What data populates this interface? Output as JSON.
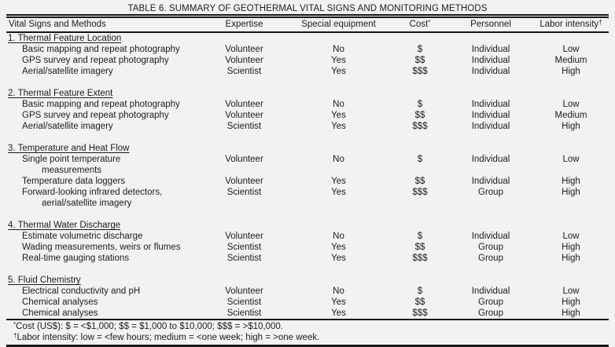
{
  "page": {
    "background_color": "#f2f2f0",
    "text_color": "#1c1c1c",
    "rule_color": "#171717"
  },
  "table": {
    "title": "TABLE 6. SUMMARY OF GEOTHERMAL VITAL SIGNS AND MONITORING METHODS",
    "columns": [
      {
        "label": "Vital Signs and Methods",
        "sup": ""
      },
      {
        "label": "Expertise",
        "sup": ""
      },
      {
        "label": "Special equipment",
        "sup": ""
      },
      {
        "label": "Cost",
        "sup": "*"
      },
      {
        "label": "Personnel",
        "sup": ""
      },
      {
        "label": "Labor intensity",
        "sup": "†"
      }
    ],
    "sections": [
      {
        "heading": "1. Thermal Feature Location",
        "rows": [
          {
            "method": [
              "Basic mapping and repeat photography"
            ],
            "expertise": "Volunteer",
            "special_equipment": "No",
            "cost": "$",
            "personnel": "Individual",
            "labor_intensity": "Low"
          },
          {
            "method": [
              "GPS survey and repeat photography"
            ],
            "expertise": "Volunteer",
            "special_equipment": "Yes",
            "cost": "$$",
            "personnel": "Individual",
            "labor_intensity": "Medium"
          },
          {
            "method": [
              "Aerial/satellite imagery"
            ],
            "expertise": "Scientist",
            "special_equipment": "Yes",
            "cost": "$$$",
            "personnel": "Individual",
            "labor_intensity": "High"
          }
        ]
      },
      {
        "heading": "2. Thermal Feature Extent",
        "rows": [
          {
            "method": [
              "Basic mapping and repeat photography"
            ],
            "expertise": "Volunteer",
            "special_equipment": "No",
            "cost": "$",
            "personnel": "Individual",
            "labor_intensity": "Low"
          },
          {
            "method": [
              "GPS survey and repeat photography"
            ],
            "expertise": "Volunteer",
            "special_equipment": "Yes",
            "cost": "$$",
            "personnel": "Individual",
            "labor_intensity": "Medium"
          },
          {
            "method": [
              "Aerial/satellite imagery"
            ],
            "expertise": "Scientist",
            "special_equipment": "Yes",
            "cost": "$$$",
            "personnel": "Individual",
            "labor_intensity": "High"
          }
        ]
      },
      {
        "heading": "3. Temperature and Heat Flow",
        "rows": [
          {
            "method": [
              "Single point temperature",
              "measurements"
            ],
            "expertise": "Volunteer",
            "special_equipment": "No",
            "cost": "$",
            "personnel": "Individual",
            "labor_intensity": "Low"
          },
          {
            "method": [
              "Temperature data loggers"
            ],
            "expertise": "Volunteer",
            "special_equipment": "Yes",
            "cost": "$$",
            "personnel": "Individual",
            "labor_intensity": "High"
          },
          {
            "method": [
              "Forward-looking infrared detectors,",
              "aerial/satellite imagery"
            ],
            "expertise": "Scientist",
            "special_equipment": "Yes",
            "cost": "$$$",
            "personnel": "Group",
            "labor_intensity": "High"
          }
        ]
      },
      {
        "heading": "4. Thermal Water Discharge",
        "rows": [
          {
            "method": [
              "Estimate volumetric discharge"
            ],
            "expertise": "Volunteer",
            "special_equipment": "No",
            "cost": "$",
            "personnel": "Individual",
            "labor_intensity": "Low"
          },
          {
            "method": [
              "Wading measurements, weirs or flumes"
            ],
            "expertise": "Scientist",
            "special_equipment": "Yes",
            "cost": "$$",
            "personnel": "Group",
            "labor_intensity": "High"
          },
          {
            "method": [
              "Real-time gauging stations"
            ],
            "expertise": "Scientist",
            "special_equipment": "Yes",
            "cost": "$$$",
            "personnel": "Group",
            "labor_intensity": "High"
          }
        ]
      },
      {
        "heading": "5. Fluid Chemistry",
        "rows": [
          {
            "method": [
              "Electrical conductivity and pH"
            ],
            "expertise": "Volunteer",
            "special_equipment": "No",
            "cost": "$",
            "personnel": "Individual",
            "labor_intensity": "Low"
          },
          {
            "method": [
              "Chemical analyses"
            ],
            "expertise": "Scientist",
            "special_equipment": "Yes",
            "cost": "$$",
            "personnel": "Group",
            "labor_intensity": "High"
          },
          {
            "method": [
              "Chemical analyses"
            ],
            "expertise": "Scientist",
            "special_equipment": "Yes",
            "cost": "$$$",
            "personnel": "Group",
            "labor_intensity": "High"
          }
        ]
      }
    ],
    "footnotes": [
      {
        "sup": "*",
        "text": "Cost (US$): $ = <$1,000; $$ = $1,000 to $10,000; $$$ = >$10,000."
      },
      {
        "sup": "†",
        "text": "Labor intensity: low = <few hours; medium = <one week; high = >one week."
      }
    ]
  }
}
